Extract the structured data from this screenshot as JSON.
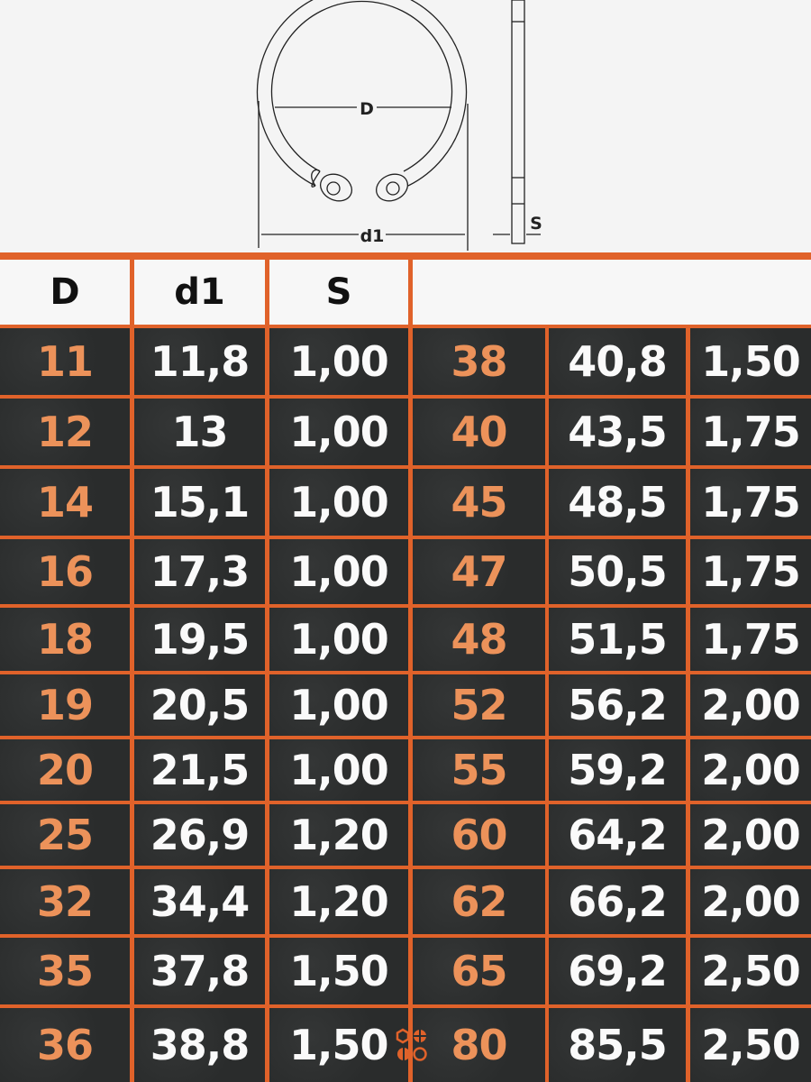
{
  "diagram": {
    "labels": {
      "inner": "D",
      "outer": "d1",
      "thickness": "S"
    }
  },
  "table": {
    "headers": [
      "D",
      "d1",
      "S"
    ],
    "left_rows": [
      [
        "11",
        "11,8",
        "1,00"
      ],
      [
        "12",
        "13",
        "1,00"
      ],
      [
        "14",
        "15,1",
        "1,00"
      ],
      [
        "16",
        "17,3",
        "1,00"
      ],
      [
        "18",
        "19,5",
        "1,00"
      ],
      [
        "19",
        "20,5",
        "1,00"
      ],
      [
        "20",
        "21,5",
        "1,00"
      ],
      [
        "25",
        "26,9",
        "1,20"
      ],
      [
        "32",
        "34,4",
        "1,20"
      ],
      [
        "35",
        "37,8",
        "1,50"
      ],
      [
        "36",
        "38,8",
        "1,50"
      ]
    ],
    "right_rows": [
      [
        "38",
        "40,8",
        "1,50"
      ],
      [
        "40",
        "43,5",
        "1,75"
      ],
      [
        "45",
        "48,5",
        "1,75"
      ],
      [
        "47",
        "50,5",
        "1,75"
      ],
      [
        "48",
        "51,5",
        "1,75"
      ],
      [
        "52",
        "56,2",
        "2,00"
      ],
      [
        "55",
        "59,2",
        "2,00"
      ],
      [
        "60",
        "64,2",
        "2,00"
      ],
      [
        "62",
        "66,2",
        "2,00"
      ],
      [
        "65",
        "69,2",
        "2,50"
      ],
      [
        "80",
        "85,5",
        "2,50"
      ]
    ]
  },
  "colors": {
    "accent": "#e0622a",
    "d_value": "#ec925a",
    "cell_bg": "#2b2d2d",
    "header_bg": "#f7f7f7"
  },
  "logo_icon": "screw-heads-icon"
}
